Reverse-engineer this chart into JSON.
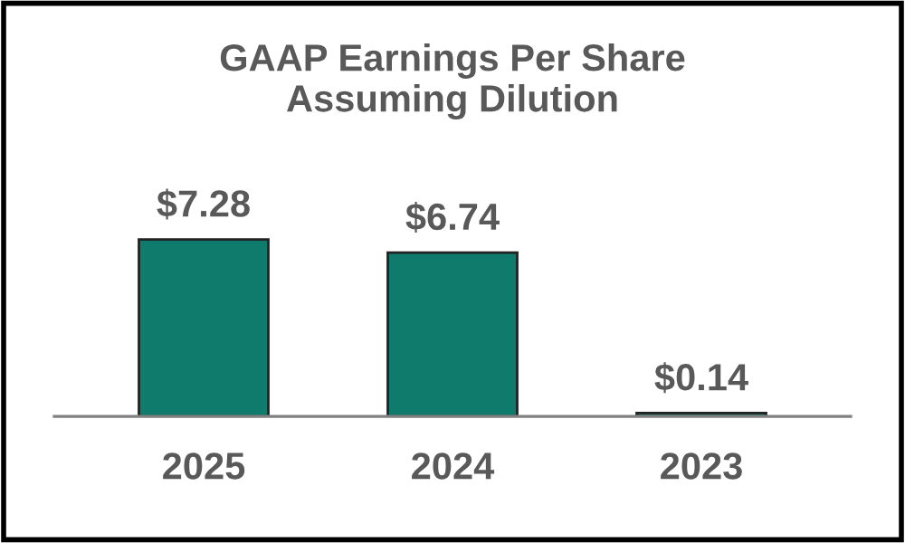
{
  "chart_data": {
    "type": "bar",
    "title": "GAAP Earnings Per Share\nAssuming Dilution",
    "categories": [
      "2025",
      "2024",
      "2023"
    ],
    "values": [
      7.28,
      6.74,
      0.14
    ],
    "value_labels": [
      "$7.28",
      "$6.74",
      "$0.14"
    ],
    "color": "#0f7b6c"
  }
}
